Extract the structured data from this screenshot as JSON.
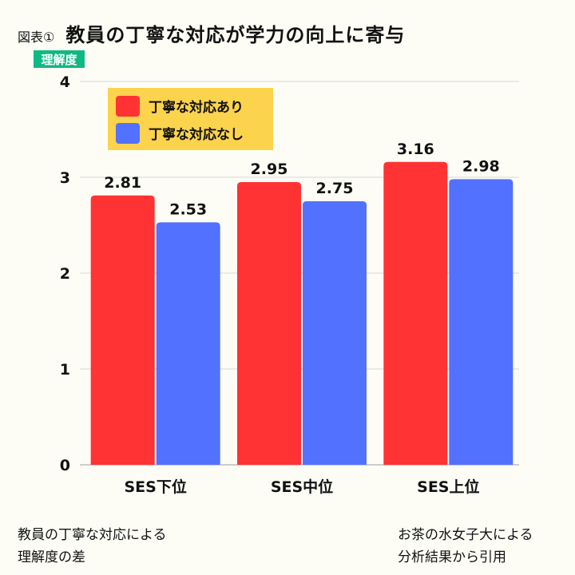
{
  "header": {
    "figure_label": "図表①",
    "title": "教員の丁寧な対応が学力の向上に寄与"
  },
  "colors": {
    "series1": "#ff3333",
    "series2": "#5271ff",
    "legend_bg": "#fcd34d",
    "ylabel_bg": "#10b981",
    "grid": "#d8d8d8",
    "background": "#fdfdf6"
  },
  "chart_data": {
    "type": "bar",
    "categories": [
      "SES下位",
      "SES中位",
      "SES上位"
    ],
    "series": [
      {
        "name": "丁寧な対応あり",
        "values": [
          2.81,
          2.95,
          3.16
        ]
      },
      {
        "name": "丁寧な対応なし",
        "values": [
          2.53,
          2.75,
          2.98
        ]
      }
    ],
    "ylabel": "理解度",
    "ylim": [
      0,
      4
    ],
    "yticks": [
      0,
      1,
      2,
      3,
      4
    ],
    "data_labels": [
      [
        "2.81",
        "2.95",
        "3.16"
      ],
      [
        "2.53",
        "2.75",
        "2.98"
      ]
    ],
    "grid": true,
    "legend_position": "top-left"
  },
  "footer": {
    "left_lines": [
      "教員の丁寧な対応による",
      "理解度の差"
    ],
    "right_lines": [
      "お茶の水女子大による",
      "分析結果から引用"
    ]
  }
}
